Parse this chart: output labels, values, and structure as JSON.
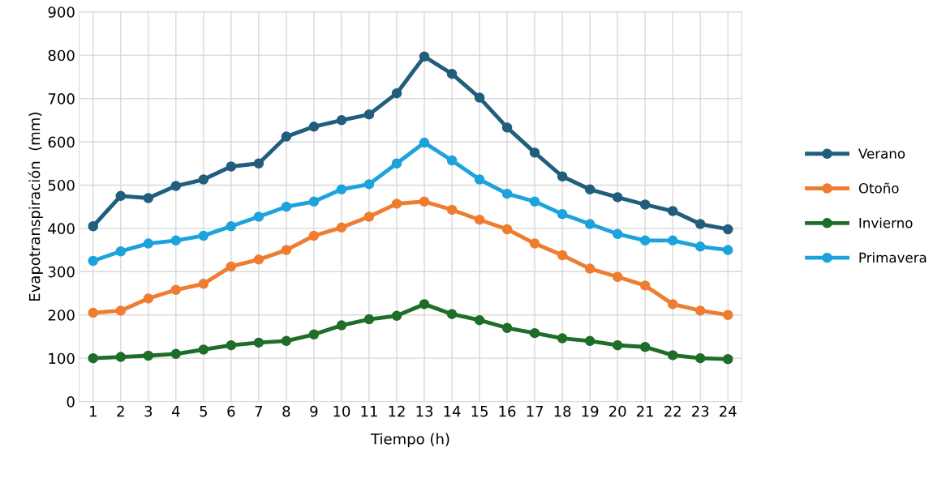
{
  "chart_data": {
    "type": "line",
    "xlabel": "Tiempo (h)",
    "ylabel": "Evapotranspiración  (mm)",
    "categories": [
      "1",
      "2",
      "3",
      "4",
      "5",
      "6",
      "7",
      "8",
      "9",
      "10",
      "11",
      "12",
      "13",
      "14",
      "15",
      "16",
      "17",
      "18",
      "19",
      "20",
      "21",
      "22",
      "23",
      "24"
    ],
    "series": [
      {
        "name": "Verano",
        "color": "#215e7d",
        "values": [
          405,
          475,
          470,
          498,
          513,
          543,
          550,
          612,
          635,
          650,
          663,
          712,
          797,
          757,
          702,
          633,
          575,
          520,
          490,
          472,
          455,
          440,
          410,
          398
        ]
      },
      {
        "name": "Otoño",
        "color": "#ee7d31",
        "values": [
          205,
          210,
          238,
          258,
          272,
          312,
          328,
          350,
          383,
          402,
          427,
          457,
          462,
          443,
          420,
          398,
          365,
          338,
          307,
          288,
          268,
          225,
          210,
          200
        ]
      },
      {
        "name": "Invierno",
        "color": "#1e6e2a",
        "values": [
          100,
          103,
          106,
          110,
          120,
          130,
          136,
          140,
          155,
          176,
          190,
          198,
          225,
          202,
          188,
          170,
          158,
          146,
          140,
          130,
          126,
          107,
          100,
          98
        ]
      },
      {
        "name": "Primavera",
        "color": "#1ca3dc",
        "values": [
          325,
          347,
          365,
          372,
          383,
          405,
          427,
          450,
          462,
          490,
          502,
          550,
          598,
          557,
          513,
          480,
          462,
          433,
          410,
          387,
          372,
          372,
          358,
          350
        ]
      }
    ],
    "ylim": [
      0,
      900
    ],
    "yticks": [
      0,
      100,
      200,
      300,
      400,
      500,
      600,
      700,
      800,
      900
    ],
    "grid": true,
    "legend": "right",
    "marker": "circle",
    "line_style": "solid"
  }
}
